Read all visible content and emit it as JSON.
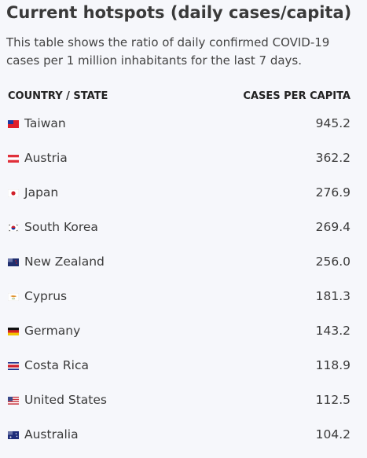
{
  "header": {
    "title": "Current hotspots (daily cases/capita)",
    "description": "This table shows the ratio of daily confirmed COVID-19 cases per 1 million inhabitants for the last 7 days."
  },
  "table": {
    "columns": [
      "COUNTRY / STATE",
      "CASES PER CAPITA"
    ],
    "rows": [
      [
        "Taiwan",
        "945.2"
      ],
      [
        "Austria",
        "362.2"
      ],
      [
        "Japan",
        "276.9"
      ],
      [
        "South Korea",
        "269.4"
      ],
      [
        "New Zealand",
        "256.0"
      ],
      [
        "Cyprus",
        "181.3"
      ],
      [
        "Germany",
        "143.2"
      ],
      [
        "Costa Rica",
        "118.9"
      ],
      [
        "United States",
        "112.5"
      ],
      [
        "Australia",
        "104.2"
      ]
    ]
  }
}
